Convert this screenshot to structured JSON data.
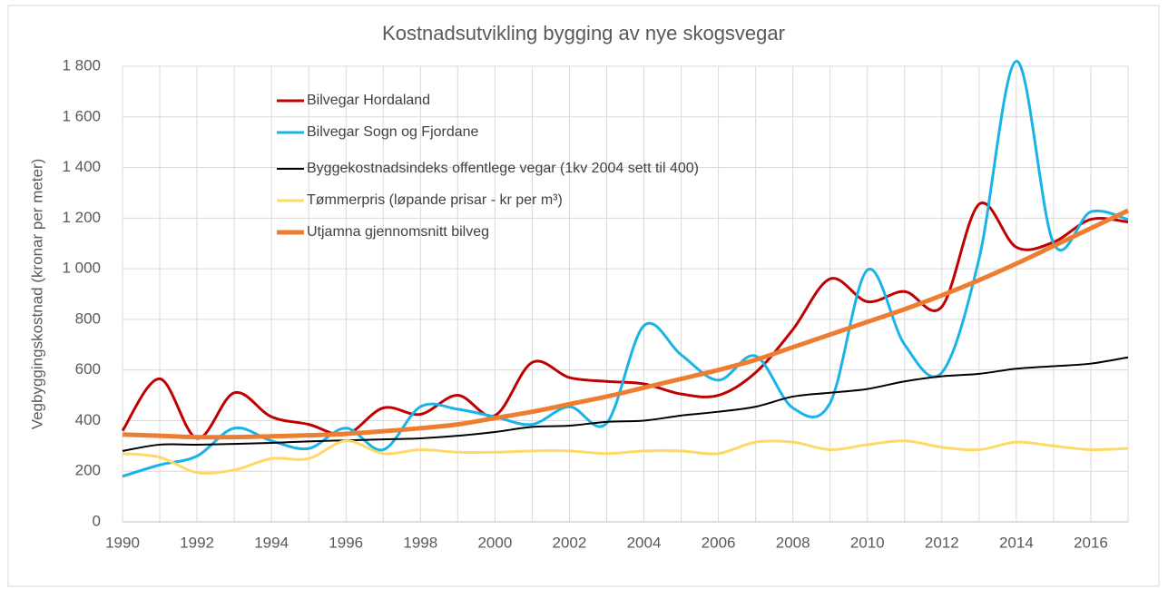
{
  "chart_data": {
    "type": "line",
    "title": "Kostnadsutvikling bygging av nye skogsvegar",
    "y_label": "Vegbyggingskostnad (kronar per meter)",
    "x": [
      1990,
      1991,
      1992,
      1993,
      1994,
      1995,
      1996,
      1997,
      1998,
      1999,
      2000,
      2001,
      2002,
      2003,
      2004,
      2005,
      2006,
      2007,
      2008,
      2009,
      2010,
      2011,
      2012,
      2013,
      2014,
      2015,
      2016,
      2017
    ],
    "xlim": [
      1990,
      2017
    ],
    "xticks": [
      1990,
      1992,
      1994,
      1996,
      1998,
      2000,
      2002,
      2004,
      2006,
      2008,
      2010,
      2012,
      2014,
      2016
    ],
    "ylim": [
      0,
      1800
    ],
    "yticks": [
      0,
      200,
      400,
      600,
      800,
      {
        "value": 1000,
        "label": "1 000"
      },
      {
        "value": 1200,
        "label": "1 200"
      },
      {
        "value": 1400,
        "label": "1 400"
      },
      {
        "value": 1600,
        "label": "1 600"
      },
      {
        "value": 1800,
        "label": "1 800"
      }
    ],
    "grid": true,
    "legend": "upper left",
    "series": [
      {
        "name": "Bilvegar Hordaland",
        "color": "#c00000",
        "width": 3,
        "values": [
          360,
          565,
          330,
          510,
          415,
          385,
          345,
          450,
          425,
          500,
          420,
          630,
          570,
          555,
          545,
          505,
          500,
          590,
          760,
          960,
          870,
          910,
          850,
          1255,
          1085,
          1105,
          1195,
          1185
        ]
      },
      {
        "name": "Bilvegar Sogn og Fjordane",
        "color": "#18b4e8",
        "width": 3,
        "values": [
          180,
          225,
          260,
          370,
          320,
          290,
          370,
          285,
          455,
          445,
          415,
          385,
          455,
          390,
          775,
          660,
          560,
          655,
          450,
          470,
          995,
          700,
          590,
          1040,
          1820,
          1100,
          1225,
          1195
        ]
      },
      {
        "name": "Byggekostnadsindeks offentlege vegar (1kv 2004 sett til 400)",
        "color": "#000000",
        "width": 2,
        "values": [
          280,
          305,
          305,
          308,
          312,
          318,
          322,
          326,
          330,
          340,
          355,
          375,
          380,
          395,
          400,
          420,
          435,
          455,
          495,
          510,
          525,
          555,
          575,
          585,
          605,
          615,
          625,
          650
        ]
      },
      {
        "name": "Tømmerpris (løpande prisar - kr per m³)",
        "color": "#ffd966",
        "width": 3,
        "values": [
          270,
          255,
          195,
          205,
          250,
          250,
          320,
          270,
          285,
          275,
          275,
          280,
          280,
          270,
          280,
          280,
          270,
          315,
          315,
          285,
          305,
          320,
          295,
          285,
          315,
          300,
          285,
          290
        ]
      },
      {
        "name": "Utjamna gjennomsnitt bilveg",
        "color": "#ed7d31",
        "width": 5,
        "values": [
          345,
          340,
          335,
          335,
          338,
          342,
          348,
          358,
          370,
          385,
          410,
          435,
          465,
          495,
          530,
          565,
          600,
          640,
          690,
          740,
          790,
          840,
          895,
          955,
          1020,
          1090,
          1160,
          1230
        ]
      }
    ]
  }
}
